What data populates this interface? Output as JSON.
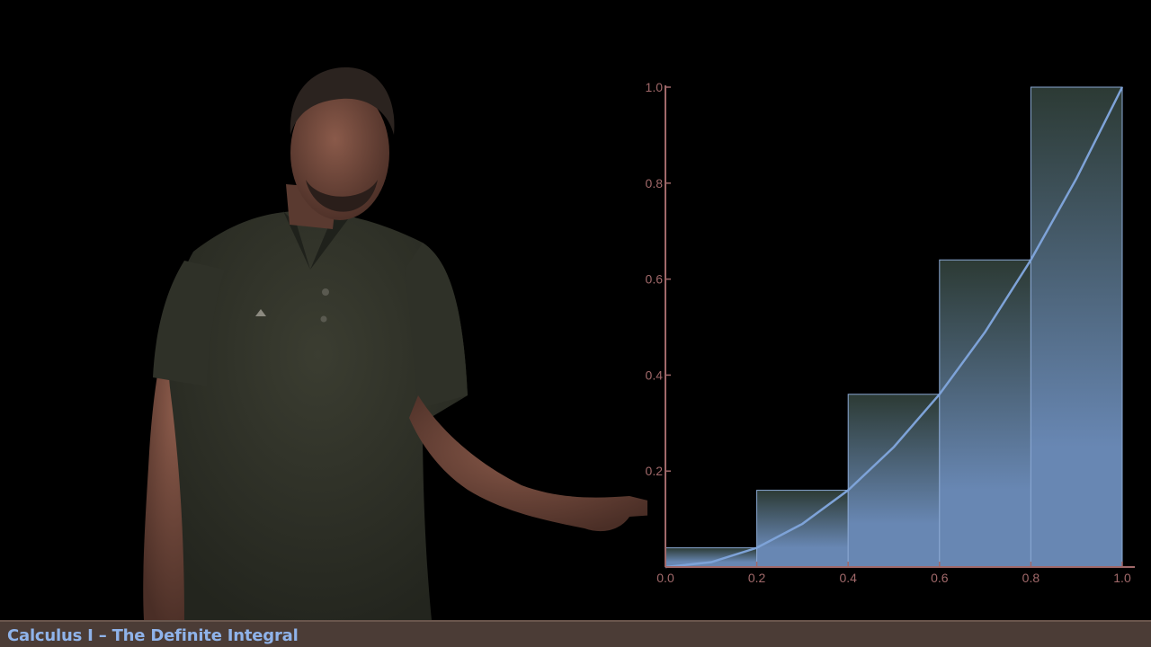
{
  "lower_third": {
    "title": "Calculus I – The Definite Integral"
  },
  "colors": {
    "axis": "#a1696a",
    "curve": "#7ea3d8",
    "bar_top": "#2c3a34",
    "bar_bottom": "#6887b3",
    "bar_edge": "#8aa8d3",
    "lower_third_bg": "#4b3c36",
    "lower_third_text": "#8fb3ea"
  },
  "chart_data": {
    "type": "bar",
    "description_kind": "right-endpoint Riemann sum",
    "function": "x^2",
    "bars": [
      {
        "x_start": 0.0,
        "x_end": 0.2,
        "height": 0.04
      },
      {
        "x_start": 0.2,
        "x_end": 0.4,
        "height": 0.16
      },
      {
        "x_start": 0.4,
        "x_end": 0.6,
        "height": 0.36
      },
      {
        "x_start": 0.6,
        "x_end": 0.8,
        "height": 0.64
      },
      {
        "x_start": 0.8,
        "x_end": 1.0,
        "height": 1.0
      }
    ],
    "curve_points": [
      [
        0.0,
        0.0
      ],
      [
        0.1,
        0.01
      ],
      [
        0.2,
        0.04
      ],
      [
        0.3,
        0.09
      ],
      [
        0.4,
        0.16
      ],
      [
        0.5,
        0.25
      ],
      [
        0.6,
        0.36
      ],
      [
        0.7,
        0.49
      ],
      [
        0.8,
        0.64
      ],
      [
        0.9,
        0.81
      ],
      [
        1.0,
        1.0
      ]
    ],
    "xlim": [
      0.0,
      1.0
    ],
    "ylim": [
      0.0,
      1.0
    ],
    "x_ticks": [
      "0.0",
      "0.2",
      "0.4",
      "0.6",
      "0.8",
      "1.0"
    ],
    "y_ticks": [
      "0.2",
      "0.4",
      "0.6",
      "0.8",
      "1.0"
    ],
    "grid": false,
    "title": "",
    "xlabel": "",
    "ylabel": ""
  }
}
